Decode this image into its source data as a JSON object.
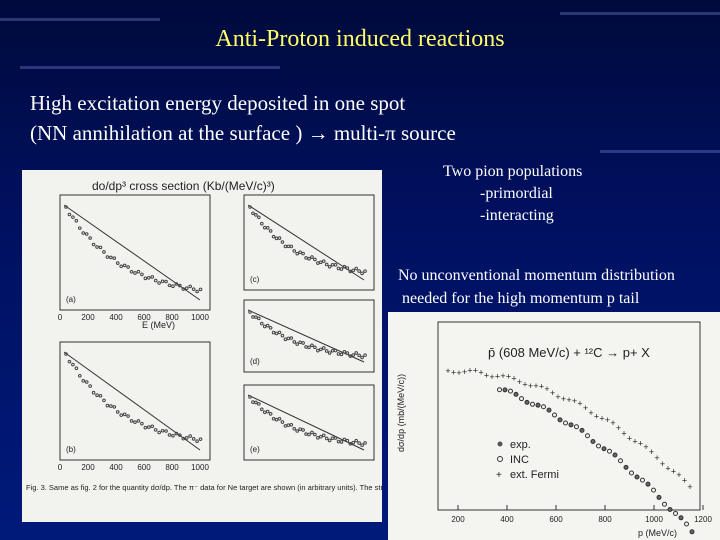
{
  "slide": {
    "title": "Anti-Proton induced reactions",
    "lines": [
      "High excitation energy deposited in one spot",
      "(NN annihilation at the surface ) → multi-π source"
    ],
    "pions": {
      "heading": "Two pion populations",
      "items": [
        "-primordial",
        "-interacting"
      ]
    },
    "note": [
      "No unconventional momentum distribution",
      "needed for the high momentum p tail"
    ],
    "left_figure": {
      "header": "do/dp³  cross  section  (Kb/(MeV/c)³)",
      "panels": [
        "(a)",
        "(c)",
        "(d)",
        "(b)",
        "(e)"
      ],
      "x_label": "E (MeV)",
      "x_ticks": [
        "0",
        "200",
        "400",
        "600",
        "800",
        "1000"
      ],
      "caption": "Fig. 3.  Same as fig. 2 for the quantity dσ/dp. The π⁻ data for Ne target are shown (in arbitrary units). The straight lines give maxwellian fits of the data. See text for detail."
    },
    "right_figure": {
      "reaction": "p̄ (608 MeV/c) + ¹²C → p+ X",
      "y_label": "dσ/dp  (mb/(MeV/c))",
      "x_label": "p (MeV/c)",
      "x_ticks": [
        "200",
        "400",
        "600",
        "800",
        "1000",
        "1200"
      ],
      "legend": [
        "exp.",
        "INC",
        "ext. Fermi"
      ]
    }
  }
}
